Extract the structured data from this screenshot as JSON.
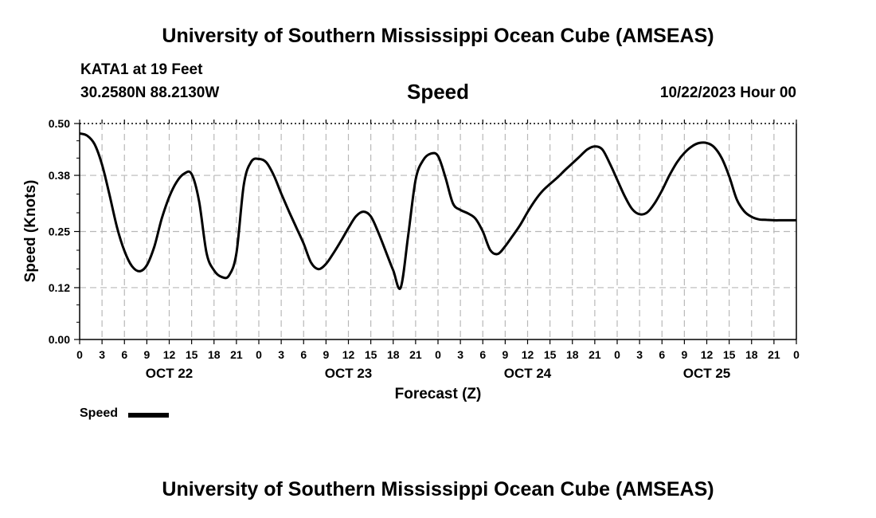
{
  "header": {
    "title": "University of Southern Mississippi Ocean Cube (AMSEAS)",
    "station": "KATA1 at 19 Feet",
    "coordinates": "30.2580N  88.2130W",
    "datetime": "10/22/2023 Hour 00"
  },
  "footer": {
    "title": "University of Southern Mississippi Ocean Cube (AMSEAS)"
  },
  "legend": {
    "label": "Speed",
    "color": "#000000"
  },
  "chart_data": {
    "type": "line",
    "title": "Speed",
    "xlabel": "Forecast (Z)",
    "ylabel": "Speed (Knots)",
    "xlim": [
      0,
      96
    ],
    "ylim": [
      0.0,
      0.5
    ],
    "grid": true,
    "yticks": [
      0.0,
      0.12,
      0.25,
      0.38,
      0.5
    ],
    "ytick_labels": [
      "0.00",
      "0.12",
      "0.25",
      "0.38",
      "0.50"
    ],
    "xticks": [
      0,
      3,
      6,
      9,
      12,
      15,
      18,
      21,
      24,
      27,
      30,
      33,
      36,
      39,
      42,
      45,
      48,
      51,
      54,
      57,
      60,
      63,
      66,
      69,
      72,
      75,
      78,
      81,
      84,
      87,
      90,
      93,
      96
    ],
    "xtick_labels": [
      "0",
      "3",
      "6",
      "9",
      "12",
      "15",
      "18",
      "21",
      "0",
      "3",
      "6",
      "9",
      "12",
      "15",
      "18",
      "21",
      "0",
      "3",
      "6",
      "9",
      "12",
      "15",
      "18",
      "21",
      "0",
      "3",
      "6",
      "9",
      "12",
      "15",
      "18",
      "21",
      "0"
    ],
    "date_labels": [
      {
        "x": 12,
        "label": "OCT 22"
      },
      {
        "x": 36,
        "label": "OCT 23"
      },
      {
        "x": 60,
        "label": "OCT 24"
      },
      {
        "x": 84,
        "label": "OCT 25"
      }
    ],
    "series": [
      {
        "name": "Speed",
        "color": "#000000",
        "x": [
          0,
          1,
          2,
          3,
          4,
          5,
          6,
          7,
          8,
          9,
          10,
          11,
          12,
          13,
          14,
          15,
          16,
          17,
          18,
          19,
          20,
          21,
          22,
          23,
          24,
          25,
          26,
          27,
          28,
          29,
          30,
          31,
          32,
          33,
          34,
          35,
          36,
          37,
          38,
          39,
          40,
          41,
          42,
          43,
          44,
          45,
          46,
          47,
          48,
          49,
          50,
          51,
          52,
          53,
          54,
          55,
          56,
          57,
          58,
          59,
          60,
          61,
          62,
          63,
          64,
          65,
          66,
          67,
          68,
          69,
          70,
          71,
          72,
          73,
          74,
          75,
          76,
          77,
          78,
          79,
          80,
          81,
          82,
          83,
          84,
          85,
          86,
          87,
          88,
          89,
          90,
          91,
          92,
          93,
          94,
          95,
          96
        ],
        "values": [
          0.477,
          0.472,
          0.452,
          0.405,
          0.335,
          0.26,
          0.205,
          0.17,
          0.158,
          0.172,
          0.215,
          0.28,
          0.33,
          0.365,
          0.384,
          0.383,
          0.32,
          0.2,
          0.16,
          0.145,
          0.148,
          0.2,
          0.36,
          0.412,
          0.418,
          0.41,
          0.38,
          0.338,
          0.298,
          0.26,
          0.222,
          0.178,
          0.163,
          0.175,
          0.2,
          0.228,
          0.258,
          0.285,
          0.296,
          0.285,
          0.248,
          0.204,
          0.16,
          0.12,
          0.24,
          0.37,
          0.415,
          0.43,
          0.425,
          0.375,
          0.315,
          0.3,
          0.292,
          0.28,
          0.25,
          0.207,
          0.198,
          0.216,
          0.24,
          0.265,
          0.295,
          0.322,
          0.344,
          0.36,
          0.375,
          0.392,
          0.408,
          0.424,
          0.44,
          0.447,
          0.44,
          0.408,
          0.37,
          0.332,
          0.302,
          0.29,
          0.294,
          0.315,
          0.345,
          0.38,
          0.41,
          0.432,
          0.447,
          0.455,
          0.455,
          0.445,
          0.42,
          0.378,
          0.325,
          0.297,
          0.284,
          0.278,
          0.277,
          0.276,
          0.276,
          0.276,
          0.276
        ]
      }
    ]
  }
}
